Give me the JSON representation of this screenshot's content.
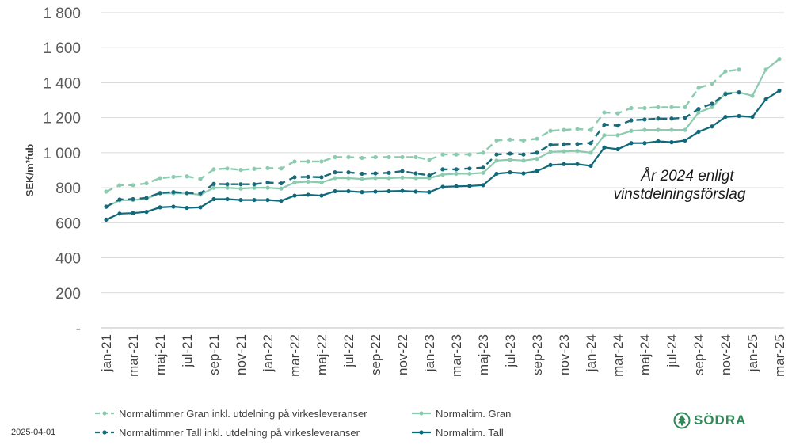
{
  "date_stamp": "2025-04-01",
  "brand": "SÖDRA",
  "brand_color": "#2e8b57",
  "chart_data": {
    "type": "line",
    "ylabel": "SEK/m³fub",
    "ylim": [
      0,
      1800
    ],
    "yticks": [
      0,
      200,
      400,
      600,
      800,
      1000,
      1200,
      1400,
      1600,
      1800
    ],
    "ytick_labels": [
      "-",
      "200",
      "400",
      "600",
      "800",
      "1 000",
      "1 200",
      "1 400",
      "1 600",
      "1 800"
    ],
    "x": [
      "jan-21",
      "feb-21",
      "mar-21",
      "apr-21",
      "maj-21",
      "jun-21",
      "jul-21",
      "aug-21",
      "sep-21",
      "okt-21",
      "nov-21",
      "dec-21",
      "jan-22",
      "feb-22",
      "mar-22",
      "apr-22",
      "maj-22",
      "jun-22",
      "jul-22",
      "aug-22",
      "sep-22",
      "okt-22",
      "nov-22",
      "dec-22",
      "jan-23",
      "feb-23",
      "mar-23",
      "apr-23",
      "maj-23",
      "jun-23",
      "jul-23",
      "aug-23",
      "sep-23",
      "okt-23",
      "nov-23",
      "dec-23",
      "jan-24",
      "feb-24",
      "mar-24",
      "apr-24",
      "maj-24",
      "jun-24",
      "jul-24",
      "aug-24",
      "sep-24",
      "okt-24",
      "nov-24",
      "dec-24",
      "jan-25",
      "feb-25",
      "mar-25"
    ],
    "xtick_labels": [
      "jan-21",
      "mar-21",
      "maj-21",
      "jul-21",
      "sep-21",
      "nov-21",
      "jan-22",
      "mar-22",
      "maj-22",
      "jul-22",
      "sep-22",
      "nov-22",
      "jan-23",
      "mar-23",
      "maj-23",
      "jul-23",
      "sep-23",
      "nov-23",
      "jan-24",
      "mar-24",
      "maj-24",
      "jul-24",
      "sep-24",
      "nov-24",
      "jan-25",
      "mar-25"
    ],
    "grid": "horizontal",
    "legend_position": "bottom",
    "annotation": {
      "lines": [
        "År 2024 enligt",
        "vinstdelningsförslag"
      ]
    },
    "series": [
      {
        "name": "Normaltimmer Gran inkl. utdelning på virkesleveranser",
        "color": "#8ccbb0",
        "dash": true,
        "values": [
          778,
          815,
          815,
          825,
          855,
          862,
          865,
          850,
          905,
          910,
          902,
          908,
          912,
          910,
          950,
          950,
          950,
          975,
          975,
          970,
          975,
          975,
          975,
          975,
          960,
          990,
          990,
          990,
          1000,
          1070,
          1075,
          1070,
          1080,
          1125,
          1130,
          1135,
          1130,
          1230,
          1225,
          1255,
          1255,
          1260,
          1260,
          1260,
          1370,
          1395,
          1465,
          1475,
          null,
          null,
          null
        ]
      },
      {
        "name": "Normaltim. Gran",
        "color": "#8ccbb0",
        "dash": false,
        "values": [
          690,
          728,
          730,
          738,
          768,
          768,
          768,
          760,
          800,
          800,
          795,
          800,
          800,
          795,
          830,
          835,
          830,
          855,
          855,
          850,
          855,
          855,
          858,
          855,
          855,
          875,
          880,
          880,
          885,
          955,
          960,
          955,
          965,
          1005,
          1008,
          1010,
          1000,
          1100,
          1100,
          1125,
          1130,
          1130,
          1130,
          1130,
          1230,
          1260,
          1340,
          1345,
          1325,
          1475,
          1535
        ]
      },
      {
        "name": "Normaltimmer Tall inkl. utdelning på virkesleveranser",
        "color": "#1a6a7a",
        "dash": true,
        "values": [
          692,
          733,
          735,
          742,
          770,
          775,
          770,
          768,
          822,
          820,
          820,
          820,
          830,
          825,
          860,
          862,
          860,
          888,
          888,
          880,
          882,
          885,
          895,
          882,
          870,
          905,
          905,
          910,
          915,
          990,
          995,
          990,
          1000,
          1045,
          1048,
          1050,
          1055,
          1160,
          1155,
          1185,
          1190,
          1195,
          1195,
          1200,
          1250,
          1280,
          1335,
          1345,
          null,
          null,
          null
        ]
      },
      {
        "name": "Normaltim. Tall",
        "color": "#0e6a7a",
        "dash": false,
        "values": [
          618,
          652,
          655,
          662,
          688,
          692,
          685,
          688,
          735,
          735,
          730,
          730,
          730,
          725,
          755,
          760,
          755,
          780,
          780,
          775,
          778,
          780,
          782,
          778,
          775,
          805,
          808,
          810,
          815,
          880,
          888,
          882,
          895,
          930,
          935,
          935,
          925,
          1030,
          1020,
          1055,
          1055,
          1065,
          1060,
          1070,
          1120,
          1150,
          1205,
          1210,
          1205,
          1305,
          1355
        ]
      }
    ]
  }
}
